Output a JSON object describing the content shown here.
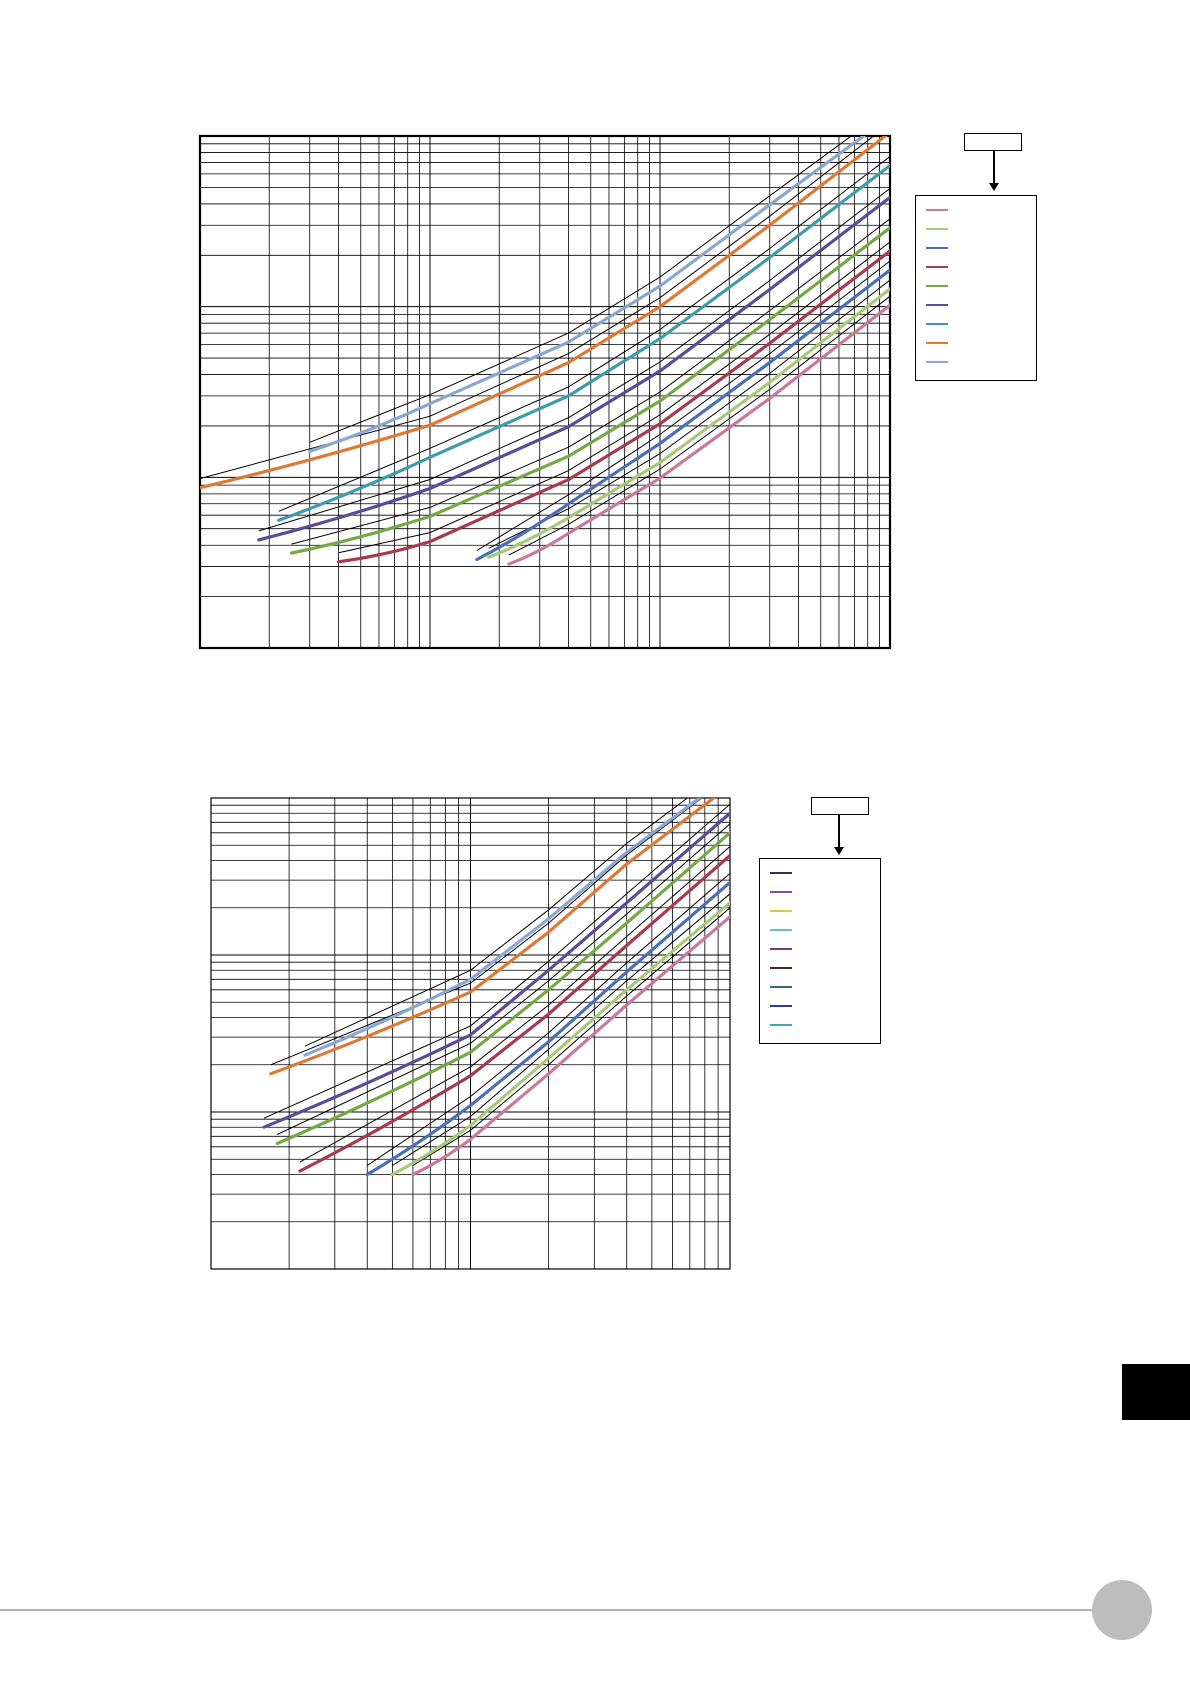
{
  "chart_data": [
    {
      "type": "line",
      "title": "",
      "xlabel": "",
      "ylabel": "",
      "xscale": "log",
      "yscale": "log",
      "xlim": [
        1,
        1000
      ],
      "ylim": [
        1,
        1000
      ],
      "grid": true,
      "legend": "right",
      "legend_tag": "",
      "colors": [
        "#c9799b",
        "#a9c87a",
        "#4a6fb8",
        "#a63a4e",
        "#76a845",
        "#5b4b9a",
        "#3f9bae",
        "#df7a36",
        "#8aa6d2"
      ],
      "series": [
        {
          "name": "",
          "color": "#c9799b",
          "x": [
            22,
            40,
            100,
            300,
            1000
          ],
          "y": [
            3.1,
            4.7,
            9.9,
            29,
            102
          ]
        },
        {
          "name": "",
          "color": "#a9c87a",
          "x": [
            18,
            40,
            100,
            300,
            1000
          ],
          "y": [
            3.4,
            5.8,
            12.2,
            36,
            127
          ]
        },
        {
          "name": "",
          "color": "#4a6fb8",
          "x": [
            16,
            40,
            100,
            300,
            1000
          ],
          "y": [
            3.3,
            7.0,
            15.8,
            47,
            164
          ]
        },
        {
          "name": "",
          "color": "#a63a4e",
          "x": [
            4,
            10,
            40,
            100,
            300,
            1000
          ],
          "y": [
            3.2,
            4.2,
            9.7,
            20.6,
            61,
            212
          ]
        },
        {
          "name": "",
          "color": "#76a845",
          "x": [
            2.5,
            10,
            40,
            100,
            300,
            1000
          ],
          "y": [
            3.6,
            5.9,
            13.3,
            28,
            84,
            290
          ]
        },
        {
          "name": "",
          "color": "#5b4b9a",
          "x": [
            1.8,
            10,
            40,
            100,
            300,
            1000
          ],
          "y": [
            4.3,
            8.6,
            19.8,
            42,
            126,
            437
          ]
        },
        {
          "name": "",
          "color": "#3f9bae",
          "x": [
            2.2,
            10,
            40,
            100,
            300,
            1000
          ],
          "y": [
            5.6,
            13.1,
            30,
            65,
            194,
            672
          ]
        },
        {
          "name": "",
          "color": "#df7a36",
          "x": [
            1,
            10,
            40,
            100,
            300,
            1000
          ],
          "y": [
            8.7,
            20.2,
            47,
            100,
            300,
            1050
          ]
        },
        {
          "name": "",
          "color": "#8aa6d2",
          "x": [
            3,
            10,
            40,
            100,
            300,
            1000
          ],
          "y": [
            14.2,
            27,
            62,
            132,
            395,
            1300
          ]
        }
      ]
    },
    {
      "type": "line",
      "title": "",
      "xlabel": "",
      "ylabel": "",
      "xscale": "log",
      "yscale": "log",
      "xlim": [
        1,
        100
      ],
      "ylim": [
        1,
        1000
      ],
      "grid": true,
      "legend": "right",
      "legend_tag": "",
      "legend_colors": [
        "#3b2f57",
        "#8b4d9e",
        "#d6cc3a",
        "#66c2c9",
        "#7a3a7e",
        "#4a2a1e",
        "#356b73",
        "#2f3f8c",
        "#3fa6b6"
      ],
      "series": [
        {
          "name": "",
          "color": "#c9799b",
          "x": [
            6,
            10,
            20,
            40,
            100
          ],
          "y": [
            4.0,
            6.7,
            17.5,
            48,
            175
          ]
        },
        {
          "name": "",
          "color": "#a9c87a",
          "x": [
            5,
            10,
            20,
            40,
            100
          ],
          "y": [
            4.0,
            8.2,
            22,
            60,
            215
          ]
        },
        {
          "name": "",
          "color": "#4a6fb8",
          "x": [
            4,
            10,
            20,
            40,
            100
          ],
          "y": [
            4.0,
            11,
            28,
            78,
            290
          ]
        },
        {
          "name": "",
          "color": "#a63a4e",
          "x": [
            2.2,
            10,
            20,
            40,
            100
          ],
          "y": [
            4.2,
            17,
            42,
            115,
            430
          ]
        },
        {
          "name": "",
          "color": "#76a845",
          "x": [
            1.8,
            10,
            20,
            40,
            100
          ],
          "y": [
            6.3,
            24,
            60,
            160,
            600
          ]
        },
        {
          "name": "",
          "color": "#5b4b9a",
          "x": [
            1.6,
            10,
            20,
            40,
            100
          ],
          "y": [
            8.0,
            31,
            80,
            215,
            800
          ]
        },
        {
          "name": "",
          "color": "#df7a36",
          "x": [
            1.7,
            10,
            20,
            40,
            100
          ],
          "y": [
            17.5,
            58,
            140,
            380,
            1200
          ]
        },
        {
          "name": "",
          "color": "#8aa6d2",
          "x": [
            2.3,
            10,
            20,
            40,
            100
          ],
          "y": [
            23,
            70,
            170,
            450,
            1400
          ]
        }
      ]
    }
  ]
}
